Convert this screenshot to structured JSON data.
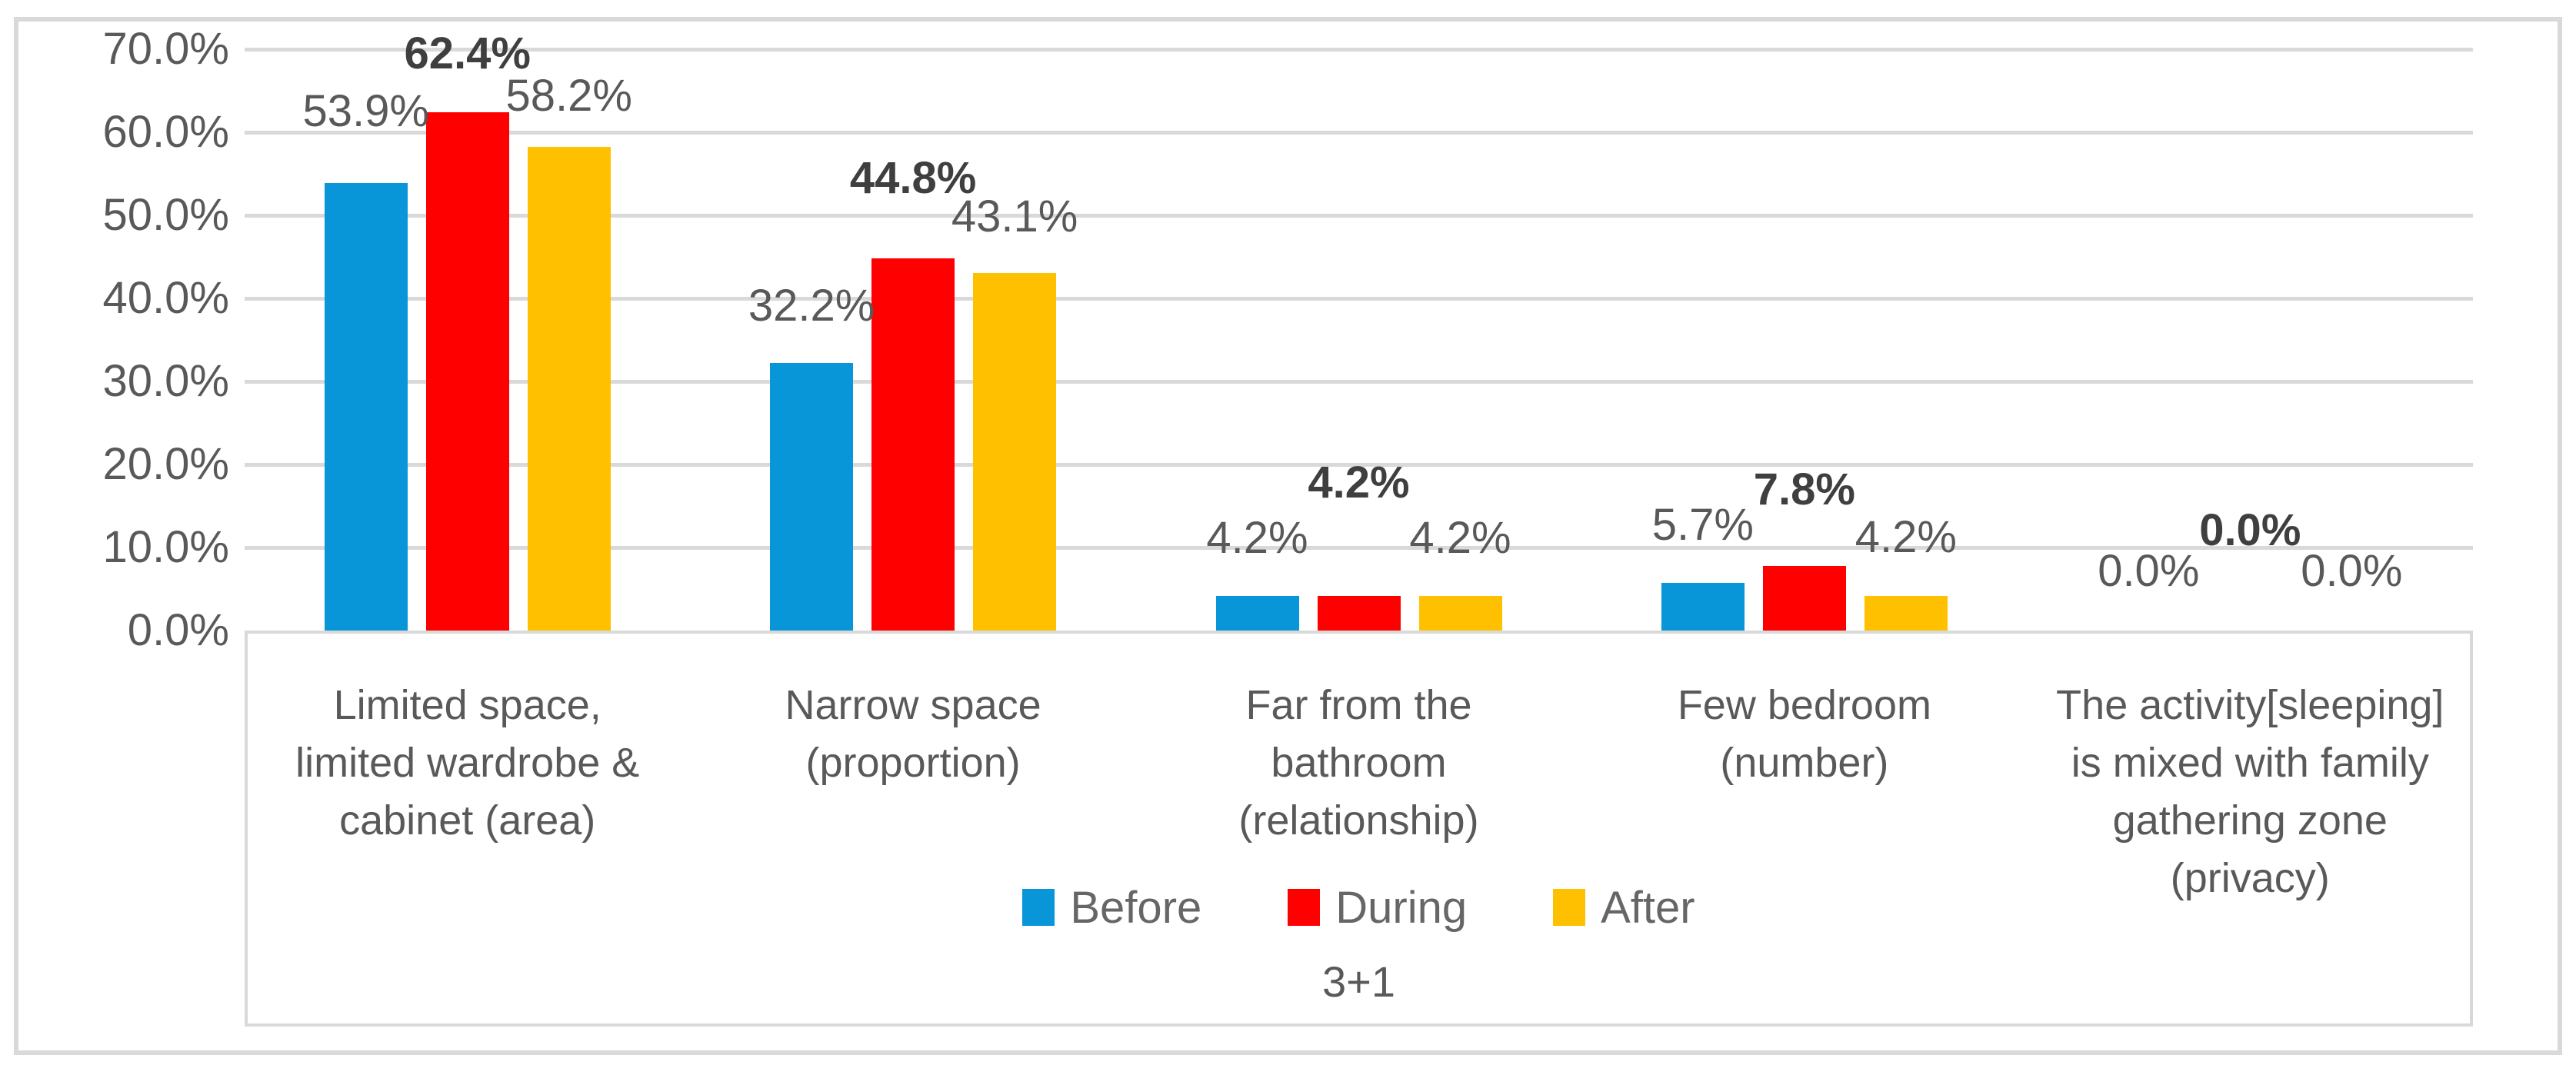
{
  "chart_data": {
    "type": "bar",
    "title": "",
    "categories": [
      "Limited space,\nlimited wardrobe &\ncabinet (area)",
      "Narrow space\n(proportion)",
      "Far from the\nbathroom\n(relationship)",
      "Few bedroom\n(number)",
      "The activity[sleeping]\nis mixed with family\ngathering zone\n(privacy)"
    ],
    "series": [
      {
        "name": "Before",
        "color": "#0896D8",
        "bold_labels": false,
        "values": [
          53.9,
          32.2,
          4.2,
          5.7,
          0.0
        ],
        "labels": [
          "53.9%",
          "32.2%",
          "4.2%",
          "5.7%",
          "0.0%"
        ]
      },
      {
        "name": "During",
        "color": "#FF0000",
        "bold_labels": true,
        "values": [
          62.4,
          44.8,
          4.2,
          7.8,
          0.0
        ],
        "labels": [
          "62.4%",
          "44.8%",
          "4.2%",
          "7.8%",
          "0.0%"
        ]
      },
      {
        "name": "After",
        "color": "#FFC000",
        "bold_labels": false,
        "values": [
          58.2,
          43.1,
          4.2,
          4.2,
          0.0
        ],
        "labels": [
          "58.2%",
          "43.1%",
          "4.2%",
          "4.2%",
          "0.0%"
        ]
      }
    ],
    "xlabel": "3+1",
    "ylabel": "",
    "y_ticks": [
      "70.0%",
      "60.0%",
      "50.0%",
      "40.0%",
      "30.0%",
      "20.0%",
      "10.0%",
      "0.0%"
    ],
    "ylim": [
      0,
      70
    ],
    "y_step": 10,
    "grid": true,
    "legend_position": "bottom",
    "legend": [
      "Before",
      "During",
      "After"
    ]
  },
  "colors": {
    "background": "#FFFFFF",
    "gridline": "#D9D9D9",
    "frame": "#D9D9D9",
    "text": "#595959",
    "bold_label_text": "#3F3F3F",
    "legend_text": "#666666"
  }
}
